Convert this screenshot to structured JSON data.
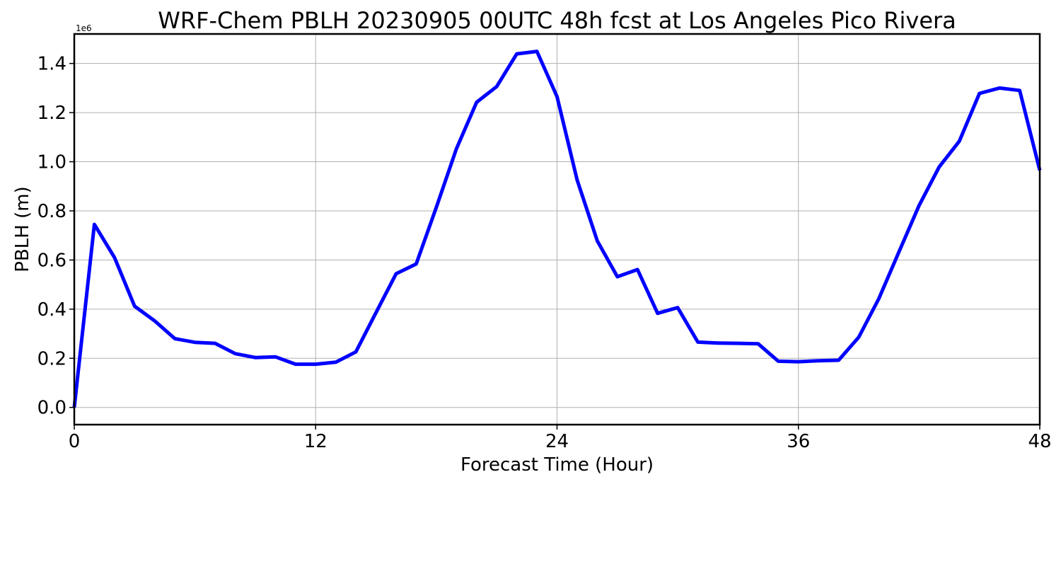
{
  "chart_data": {
    "type": "line",
    "title": "WRF-Chem PBLH  20230905 00UTC 48h fcst at Los Angeles Pico Rivera",
    "xlabel": "Forecast Time (Hour)",
    "ylabel": "PBLH  (m)",
    "y_scale_label": "1e6",
    "xlim": [
      0,
      48
    ],
    "ylim": [
      -0.07,
      1.52
    ],
    "x_ticks": [
      0,
      12,
      24,
      36,
      48
    ],
    "x_tick_labels": [
      "0",
      "12",
      "24",
      "36",
      "48"
    ],
    "y_ticks": [
      0.0,
      0.2,
      0.4,
      0.6,
      0.8,
      1.0,
      1.2,
      1.4
    ],
    "y_tick_labels": [
      "0.0",
      "0.2",
      "0.4",
      "0.6",
      "0.8",
      "1.0",
      "1.2",
      "1.4"
    ],
    "grid": true,
    "line_color": "#0000ff",
    "series": [
      {
        "x": [
          0,
          1,
          2,
          3,
          4,
          5,
          6,
          7,
          8,
          9,
          10,
          11,
          12,
          13,
          14,
          15,
          16,
          17,
          18,
          19,
          20,
          21,
          22,
          23,
          24,
          25,
          26,
          27,
          28,
          29,
          30,
          31,
          32,
          33,
          34,
          35,
          36,
          37,
          38,
          39,
          40,
          41,
          42,
          43,
          44,
          45,
          46,
          47,
          48
        ],
        "values": [
          0.0,
          0.745,
          0.61,
          0.412,
          0.352,
          0.28,
          0.265,
          0.261,
          0.219,
          0.203,
          0.206,
          0.176,
          0.176,
          0.184,
          0.226,
          0.386,
          0.544,
          0.584,
          0.815,
          1.053,
          1.242,
          1.306,
          1.439,
          1.449,
          1.265,
          0.926,
          0.678,
          0.532,
          0.561,
          0.383,
          0.406,
          0.266,
          0.262,
          0.261,
          0.259,
          0.188,
          0.186,
          0.19,
          0.192,
          0.286,
          0.443,
          0.633,
          0.822,
          0.979,
          1.084,
          1.278,
          1.3,
          1.29,
          0.965
        ]
      }
    ]
  }
}
